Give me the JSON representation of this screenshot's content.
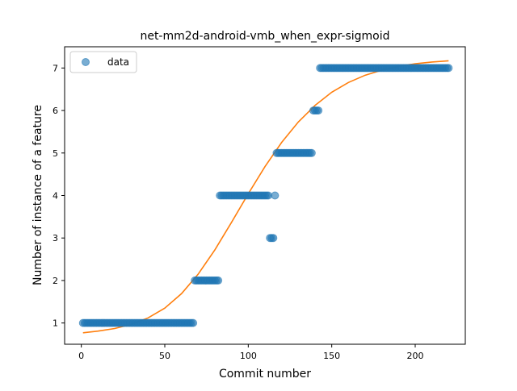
{
  "chart_data": {
    "type": "scatter",
    "title": "net-mm2d-android-vmb_when_expr-sigmoid",
    "xlabel": "Commit number",
    "ylabel": "Number of instance of a feature",
    "xlim": [
      -10,
      230
    ],
    "ylim": [
      0.5,
      7.5
    ],
    "xticks": [
      0,
      50,
      100,
      150,
      200
    ],
    "yticks": [
      1,
      2,
      3,
      4,
      5,
      6,
      7
    ],
    "grid": false,
    "legend": {
      "position": "top-left",
      "entries": [
        "data"
      ]
    },
    "colors": {
      "data": "#1f77b4",
      "fit": "#ff7f0e"
    },
    "series": [
      {
        "name": "data",
        "kind": "scatter",
        "segments": [
          {
            "x_start": 1,
            "x_end": 67,
            "y": 1
          },
          {
            "x_start": 68,
            "x_end": 82,
            "y": 2
          },
          {
            "x_start": 83,
            "x_end": 112,
            "y": 4
          },
          {
            "x_start": 113,
            "x_end": 115,
            "y": 3
          },
          {
            "x_start": 116,
            "x_end": 116,
            "y": 4
          },
          {
            "x_start": 117,
            "x_end": 138,
            "y": 5
          },
          {
            "x_start": 139,
            "x_end": 142,
            "y": 6
          },
          {
            "x_start": 143,
            "x_end": 220,
            "y": 7
          }
        ]
      },
      {
        "kind": "line",
        "x": [
          1,
          10,
          20,
          30,
          40,
          50,
          60,
          70,
          80,
          90,
          100,
          110,
          120,
          130,
          140,
          150,
          160,
          170,
          180,
          190,
          200,
          210,
          220
        ],
        "y": [
          0.77,
          0.81,
          0.87,
          0.97,
          1.12,
          1.35,
          1.69,
          2.15,
          2.72,
          3.37,
          4.04,
          4.68,
          5.25,
          5.73,
          6.12,
          6.43,
          6.66,
          6.83,
          6.95,
          7.04,
          7.1,
          7.14,
          7.17
        ]
      }
    ]
  }
}
